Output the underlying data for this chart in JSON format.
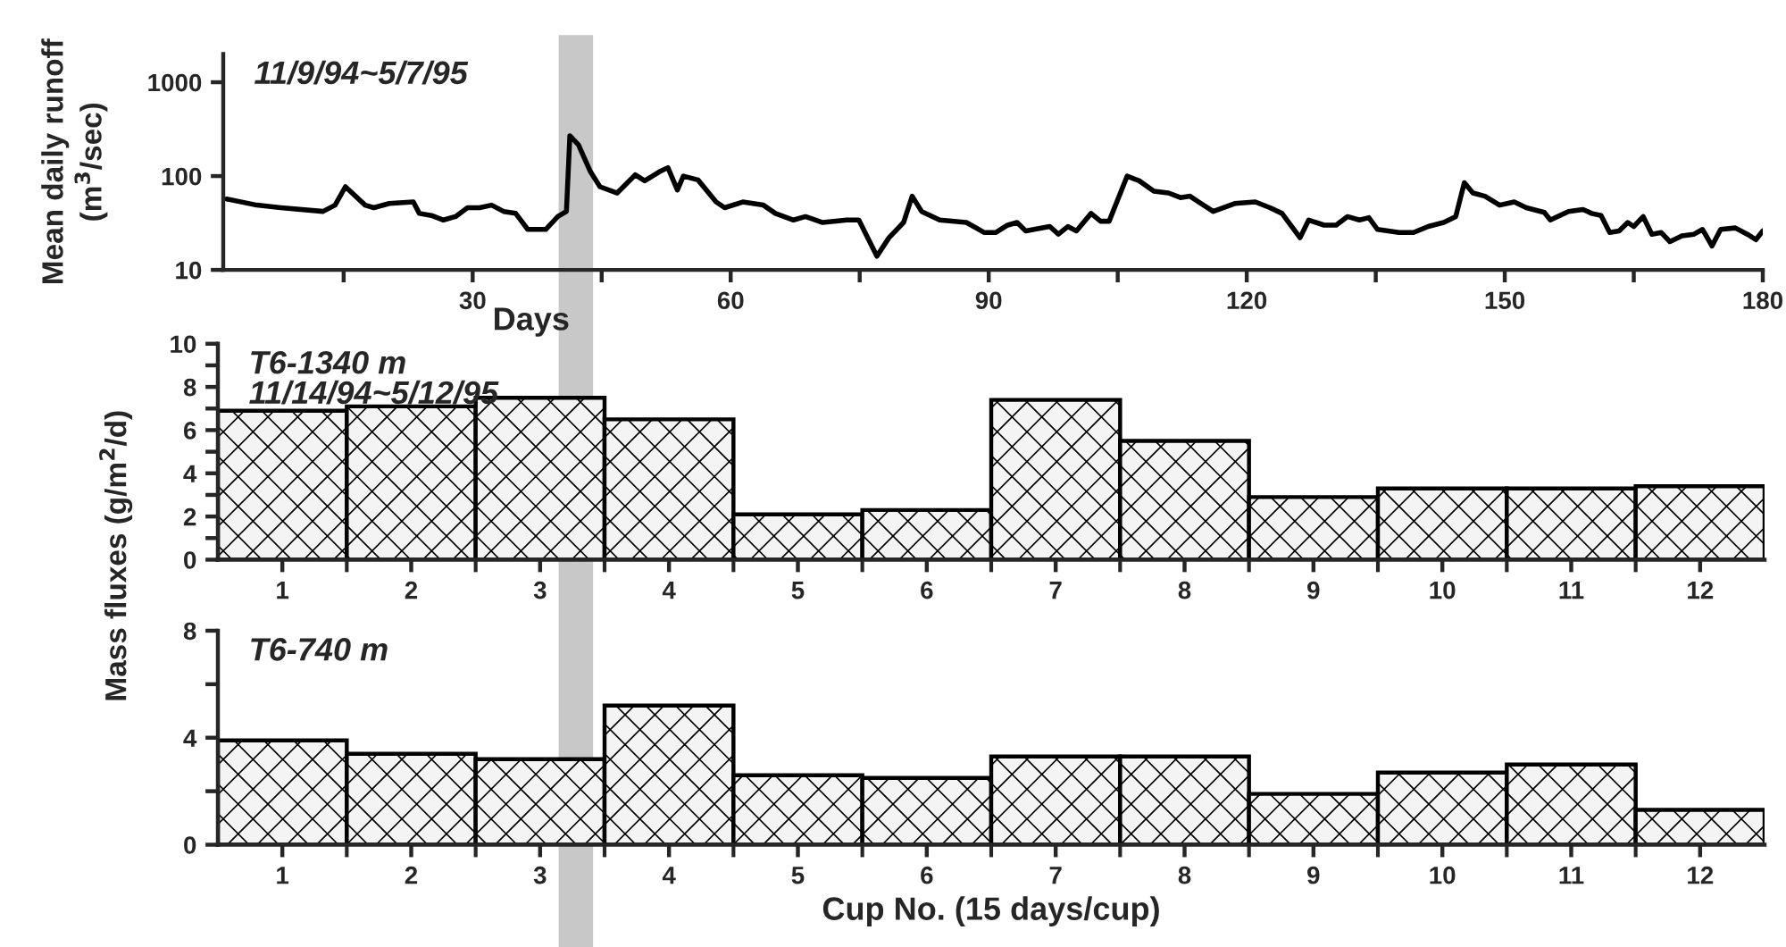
{
  "chart_data": [
    {
      "type": "line",
      "ylabel": "Mean daily runoff\n(m$^{3}$/sec)",
      "xlabel": "Days",
      "annotations": [
        "11/9/94~5/7/95"
      ],
      "log": "y",
      "xlim": [
        1,
        180
      ],
      "ylim": [
        10,
        2000
      ],
      "xticks": [
        {
          "value": 15,
          "label": null
        },
        30,
        {
          "value": 45,
          "label": null
        },
        60,
        {
          "value": 75,
          "label": null
        },
        90,
        {
          "value": 105,
          "label": null
        },
        120,
        {
          "value": 135,
          "label": null
        },
        150,
        {
          "value": 165,
          "label": null
        },
        180
      ],
      "yticks": [
        10,
        100,
        1000
      ],
      "grid": false,
      "legend": false,
      "marker": "none",
      "line_style": "solid",
      "bands": [
        {
          "axis": "x",
          "from": 40,
          "to": 44,
          "color": "#c8c8c8"
        }
      ],
      "series": [
        {
          "color": "#000000",
          "x": [
            1.4,
            4.9,
            7.7,
            12.6,
            14.0,
            15.2,
            17.5,
            18.5,
            20.3,
            23.1,
            23.8,
            25.2,
            26.6,
            28.0,
            29.4,
            30.8,
            32.2,
            33.6,
            35.0,
            36.4,
            38.5,
            39.9,
            40.9,
            41.3,
            42.3,
            43.7,
            44.8,
            46.8,
            48.9,
            50.0,
            51.7,
            52.7,
            53.8,
            54.5,
            56.2,
            58.3,
            59.3,
            61.4,
            63.8,
            65.2,
            67.3,
            68.7,
            70.7,
            73.5,
            74.9,
            77.0,
            78.4,
            80.1,
            81.1,
            82.2,
            84.3,
            87.4,
            89.5,
            90.8,
            92.2,
            93.3,
            94.3,
            97.1,
            98.1,
            99.2,
            100.2,
            101.9,
            103.0,
            104.0,
            106.1,
            107.5,
            109.2,
            110.9,
            112.3,
            113.4,
            114.4,
            116.1,
            118.6,
            121.0,
            122.7,
            124.1,
            126.2,
            127.2,
            129.0,
            130.4,
            131.7,
            133.1,
            134.2,
            135.2,
            137.7,
            139.4,
            141.1,
            142.9,
            144.3,
            145.3,
            146.3,
            147.7,
            149.4,
            151.1,
            152.5,
            154.6,
            155.3,
            157.4,
            159.1,
            160.1,
            161.2,
            162.2,
            163.3,
            164.3,
            165.0,
            166.1,
            167.1,
            168.2,
            169.2,
            170.6,
            172.0,
            173.0,
            174.1,
            175.1,
            176.8,
            178.2,
            179.2,
            180
          ],
          "values": [
            57,
            49,
            46,
            42,
            49,
            77,
            49,
            46,
            51,
            53,
            40,
            38,
            34,
            37,
            46,
            46,
            49,
            42,
            40,
            27,
            27,
            37,
            42,
            269,
            215,
            111,
            77,
            66,
            103,
            89,
            111,
            123,
            71,
            100,
            91,
            53,
            46,
            53,
            49,
            40,
            34,
            37,
            32,
            34,
            34,
            14,
            22,
            32,
            61,
            42,
            34,
            32,
            25,
            25,
            30,
            32,
            26,
            29,
            24,
            29,
            26,
            40,
            33,
            33,
            100,
            89,
            69,
            66,
            59,
            61,
            53,
            42,
            51,
            53,
            46,
            40,
            22,
            34,
            30,
            30,
            37,
            34,
            36,
            27,
            25,
            25,
            29,
            32,
            37,
            85,
            66,
            61,
            49,
            53,
            46,
            41,
            34,
            42,
            44,
            40,
            38,
            25,
            26,
            32,
            29,
            37,
            24,
            25,
            20,
            23,
            24,
            27,
            18,
            27,
            28,
            24,
            21,
            26
          ]
        }
      ]
    },
    {
      "type": "bar",
      "annotations": [
        "T6-1340 m\n11/14/94~5/12/95"
      ],
      "categories": [
        "1",
        "2",
        "3",
        "4",
        "5",
        "6",
        "7",
        "8",
        "9",
        "10",
        "11",
        "12"
      ],
      "ylim": [
        0,
        10
      ],
      "yticks": [
        0,
        {
          "value": 1,
          "label": null
        },
        2,
        {
          "value": 3,
          "label": null
        },
        4,
        {
          "value": 5,
          "label": null
        },
        6,
        {
          "value": 7,
          "label": null
        },
        8,
        {
          "value": 9,
          "label": null
        },
        10
      ],
      "grid": false,
      "legend": false,
      "series": [
        {
          "color": "#000000",
          "values": [
            6.9,
            7.1,
            7.5,
            6.5,
            2.1,
            2.3,
            7.4,
            5.5,
            2.9,
            3.3,
            3.3,
            3.4
          ]
        }
      ]
    },
    {
      "type": "bar",
      "ylabel": "Mass fluxes (g/m$^{2}$/d)",
      "xlabel": "Cup No. (15 days/cup)",
      "annotations": [
        "T6-740 m"
      ],
      "categories": [
        "1",
        "2",
        "3",
        "4",
        "5",
        "6",
        "7",
        "8",
        "9",
        "10",
        "11",
        "12"
      ],
      "ylim": [
        0,
        8
      ],
      "yticks": [
        0,
        {
          "value": 2,
          "label": null
        },
        4,
        {
          "value": 6,
          "label": null
        },
        8
      ],
      "grid": false,
      "legend": false,
      "series": [
        {
          "color": "#000000",
          "values": [
            3.9,
            3.4,
            3.2,
            5.2,
            2.6,
            2.5,
            3.3,
            3.3,
            1.9,
            2.7,
            3.0,
            1.3
          ]
        }
      ]
    }
  ]
}
